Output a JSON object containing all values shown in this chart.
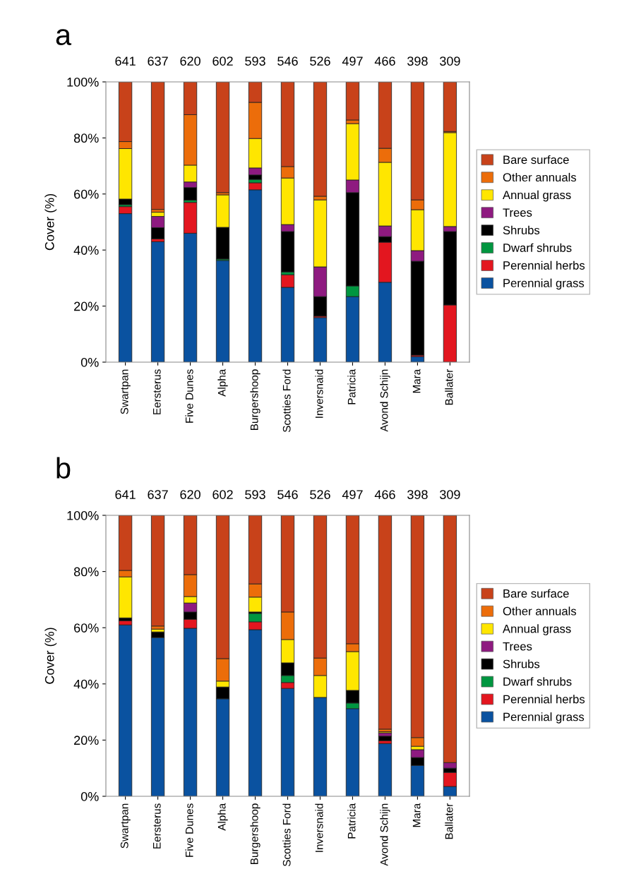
{
  "chart_data": [
    {
      "type": "bar",
      "title": "a",
      "ylabel": "Cover (%)",
      "stacked": true,
      "legend": "right",
      "grid": false,
      "categories": [
        "Swartpan",
        "Eersterus",
        "Five Dunes",
        "Alpha",
        "Burgershoop",
        "Scotties Ford",
        "Inversnaid",
        "Patricia",
        "Avond Schijn",
        "Mara",
        "Ballater"
      ],
      "ylim": [
        0,
        100
      ],
      "yticks": [
        {
          "value": 0,
          "label": "0%"
        },
        {
          "value": 20,
          "label": "20%"
        },
        {
          "value": 40,
          "label": "40%"
        },
        {
          "value": 60,
          "label": "60%"
        },
        {
          "value": 80,
          "label": "80%"
        },
        {
          "value": 100,
          "label": "100%"
        }
      ],
      "series": [
        {
          "name": "Perennial grass",
          "color": "#0a52a0",
          "values": [
            53,
            43,
            46,
            36.3,
            61.5,
            26.7,
            15.9,
            23.4,
            28.5,
            2,
            0
          ]
        },
        {
          "name": "Perennial herbs",
          "color": "#e3161f",
          "values": [
            2.5,
            1,
            11,
            0,
            2.5,
            4.5,
            0.5,
            0,
            14.3,
            0.5,
            20.4
          ]
        },
        {
          "name": "Dwarf shrubs",
          "color": "#009640",
          "values": [
            0.7,
            0,
            0.8,
            0.5,
            1.2,
            1,
            0,
            3.8,
            0,
            0,
            0
          ]
        },
        {
          "name": "Shrubs",
          "color": "#000000",
          "values": [
            2,
            4,
            4.5,
            11.3,
            1.6,
            14.4,
            7,
            33.3,
            2,
            33.5,
            26.2
          ]
        },
        {
          "name": "Trees",
          "color": "#8e1a80",
          "values": [
            0,
            4,
            2,
            0,
            2.5,
            2.5,
            10.6,
            4.5,
            3.8,
            3.8,
            1.8
          ]
        },
        {
          "name": "Annual grass",
          "color": "#ffe600",
          "values": [
            18,
            1.5,
            6,
            11.6,
            10.5,
            16.6,
            23.9,
            20.1,
            22.7,
            14.6,
            33.5
          ]
        },
        {
          "name": "Other annuals",
          "color": "#ec6d0a",
          "values": [
            2.5,
            1,
            18,
            0.8,
            12.9,
            4.1,
            1.3,
            1.3,
            5,
            3.5,
            0.4
          ]
        },
        {
          "name": "Bare surface",
          "color": "#c8421a",
          "values": [
            21.3,
            45.5,
            11.7,
            39.5,
            7.3,
            30.2,
            40.8,
            13.6,
            23.7,
            42.1,
            17.7
          ]
        }
      ],
      "annotations": [
        {
          "text": "641",
          "x": "Swartpan",
          "y": 100
        },
        {
          "text": "637",
          "x": "Eersterus",
          "y": 100
        },
        {
          "text": "620",
          "x": "Five Dunes",
          "y": 100
        },
        {
          "text": "602",
          "x": "Alpha",
          "y": 100
        },
        {
          "text": "593",
          "x": "Burgershoop",
          "y": 100
        },
        {
          "text": "546",
          "x": "Scotties Ford",
          "y": 100
        },
        {
          "text": "526",
          "x": "Inversnaid",
          "y": 100
        },
        {
          "text": "497",
          "x": "Patricia",
          "y": 100
        },
        {
          "text": "466",
          "x": "Avond Schijn",
          "y": 100
        },
        {
          "text": "398",
          "x": "Mara",
          "y": 100
        },
        {
          "text": "309",
          "x": "Ballater",
          "y": 100
        }
      ]
    },
    {
      "type": "bar",
      "title": "b",
      "ylabel": "Cover (%)",
      "stacked": true,
      "legend": "right",
      "grid": false,
      "categories": [
        "Swartpan",
        "Eersterus",
        "Five Dunes",
        "Alpha",
        "Burgershoop",
        "Scotties Ford",
        "Inversnaid",
        "Patricia",
        "Avond Schijn",
        "Mara",
        "Ballater"
      ],
      "ylim": [
        0,
        100
      ],
      "yticks": [
        {
          "value": 0,
          "label": "0%"
        },
        {
          "value": 20,
          "label": "20%"
        },
        {
          "value": 40,
          "label": "40%"
        },
        {
          "value": 60,
          "label": "60%"
        },
        {
          "value": 80,
          "label": "80%"
        },
        {
          "value": 100,
          "label": "100%"
        }
      ],
      "series": [
        {
          "name": "Perennial grass",
          "color": "#0a52a0",
          "values": [
            61,
            56.5,
            59.8,
            34.7,
            59.3,
            38.4,
            35.2,
            31.2,
            18.8,
            11,
            3.5
          ]
        },
        {
          "name": "Perennial herbs",
          "color": "#e3161f",
          "values": [
            1.5,
            0,
            3.2,
            0,
            2.8,
            2.1,
            0,
            0,
            1,
            0,
            5
          ]
        },
        {
          "name": "Dwarf shrubs",
          "color": "#009640",
          "values": [
            0,
            0,
            0,
            0,
            3,
            2.5,
            0,
            2,
            0,
            0,
            0
          ]
        },
        {
          "name": "Shrubs",
          "color": "#000000",
          "values": [
            1,
            2,
            2.6,
            4.2,
            0.5,
            4.5,
            0,
            4.5,
            1.6,
            2.8,
            1.5
          ]
        },
        {
          "name": "Trees",
          "color": "#8e1a80",
          "values": [
            0,
            0,
            3.2,
            0,
            0,
            0,
            0,
            0,
            1.2,
            2.8,
            2
          ]
        },
        {
          "name": "Annual grass",
          "color": "#ffe600",
          "values": [
            14.6,
            1,
            2.3,
            2.1,
            5.3,
            8.3,
            7.8,
            13.8,
            0.4,
            1.2,
            0
          ]
        },
        {
          "name": "Other annuals",
          "color": "#ec6d0a",
          "values": [
            2.3,
            1.1,
            7.8,
            8,
            4.7,
            9.8,
            6.2,
            2.8,
            0.9,
            3.1,
            0
          ]
        },
        {
          "name": "Bare surface",
          "color": "#c8421a",
          "values": [
            19.6,
            39.4,
            21.1,
            51,
            24.4,
            34.4,
            50.8,
            45.7,
            76.1,
            79.1,
            88
          ]
        }
      ],
      "annotations": [
        {
          "text": "641",
          "x": "Swartpan",
          "y": 100
        },
        {
          "text": "637",
          "x": "Eersterus",
          "y": 100
        },
        {
          "text": "620",
          "x": "Five Dunes",
          "y": 100
        },
        {
          "text": "602",
          "x": "Alpha",
          "y": 100
        },
        {
          "text": "593",
          "x": "Burgershoop",
          "y": 100
        },
        {
          "text": "546",
          "x": "Scotties Ford",
          "y": 100
        },
        {
          "text": "526",
          "x": "Inversnaid",
          "y": 100
        },
        {
          "text": "497",
          "x": "Patricia",
          "y": 100
        },
        {
          "text": "466",
          "x": "Avond Schijn",
          "y": 100
        },
        {
          "text": "398",
          "x": "Mara",
          "y": 100
        },
        {
          "text": "309",
          "x": "Ballater",
          "y": 100
        }
      ]
    }
  ]
}
